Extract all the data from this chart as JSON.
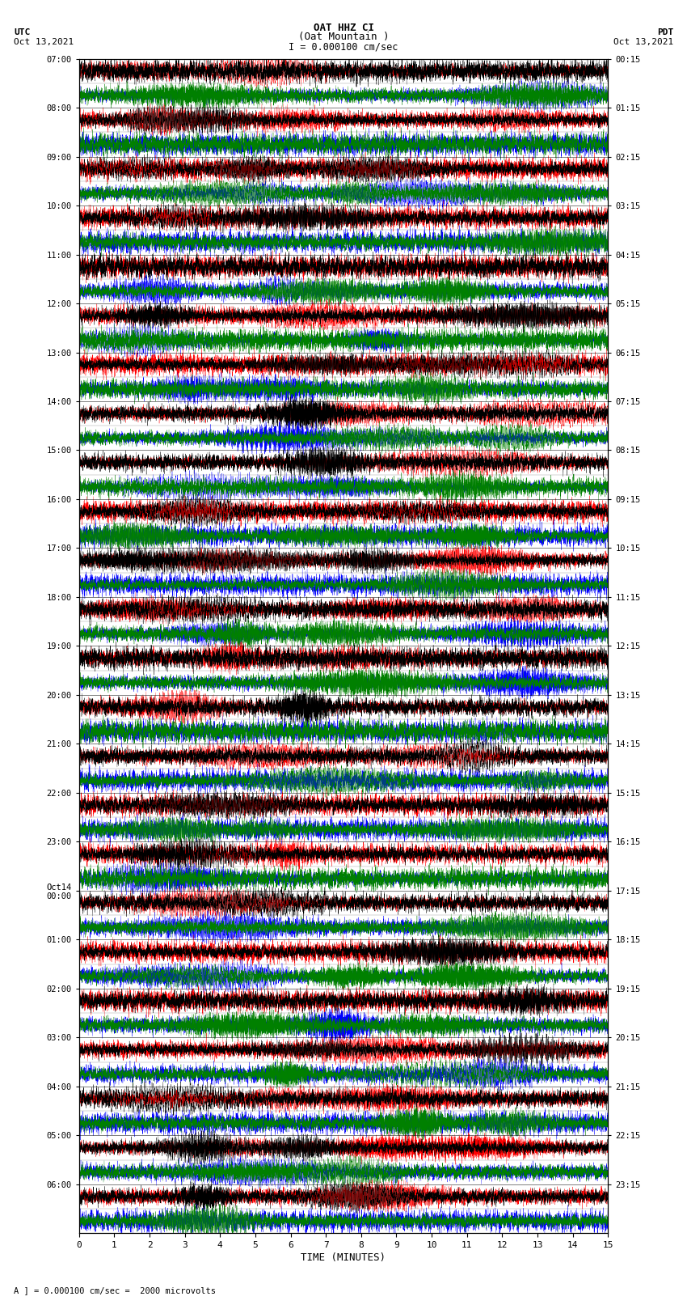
{
  "title_line1": "OAT HHZ CI",
  "title_line2": "(Oat Mountain )",
  "title_line3": "I = 0.000100 cm/sec",
  "label_utc": "UTC",
  "label_pdt": "PDT",
  "date_left": "Oct 13,2021",
  "date_right": "Oct 13,2021",
  "xlabel": "TIME (MINUTES)",
  "footer": "= 0.000100 cm/sec =  2000 microvolts",
  "yticks_left": [
    "07:00",
    "08:00",
    "09:00",
    "10:00",
    "11:00",
    "12:00",
    "13:00",
    "14:00",
    "15:00",
    "16:00",
    "17:00",
    "18:00",
    "19:00",
    "20:00",
    "21:00",
    "22:00",
    "23:00",
    "Oct14\n00:00",
    "01:00",
    "02:00",
    "03:00",
    "04:00",
    "05:00",
    "06:00"
  ],
  "yticks_right": [
    "00:15",
    "01:15",
    "02:15",
    "03:15",
    "04:15",
    "05:15",
    "06:15",
    "07:15",
    "08:15",
    "09:15",
    "10:15",
    "11:15",
    "12:15",
    "13:15",
    "14:15",
    "15:15",
    "16:15",
    "17:15",
    "18:15",
    "19:15",
    "20:15",
    "21:15",
    "22:15",
    "23:15"
  ],
  "n_rows": 24,
  "minutes_per_row": 15,
  "samples_per_row": 9000,
  "sub_row_colors": [
    [
      "red",
      "black"
    ],
    [
      "blue",
      "green"
    ]
  ],
  "bg_color": "white",
  "fig_width": 8.5,
  "fig_height": 16.13,
  "amplitude": 0.46,
  "noise_seed": 42,
  "lw": 0.22
}
